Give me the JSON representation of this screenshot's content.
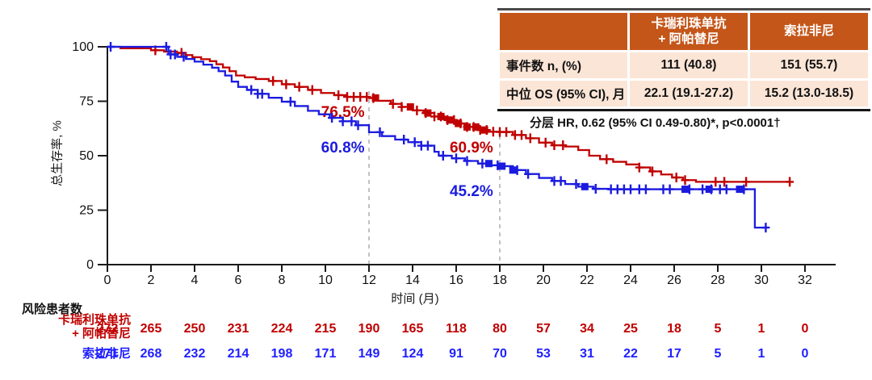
{
  "colors": {
    "red": "#c00000",
    "blue": "#1b1be0",
    "blue_text": "#1f1fff",
    "table_header_bg": "#c4561a",
    "table_body_bg": "#fbe5d6",
    "dashed_line": "#b3b3b3",
    "axis": "#1a1a1a"
  },
  "summary_table": {
    "header": {
      "col2_line1": "卡瑞利珠单抗",
      "col2_line2": "+ 阿帕替尼",
      "col3": "索拉非尼"
    },
    "rows": [
      {
        "label": "事件数 n, (%)",
        "arm1": "111 (40.8)",
        "arm2": "151 (55.7)"
      },
      {
        "label": "中位 OS (95% CI), 月",
        "arm1": "22.1 (19.1-27.2)",
        "arm2": "15.2 (13.0-18.5)"
      }
    ]
  },
  "hr_note": {
    "text": "分层 HR, 0.62 (95% CI 0.49-0.80)*, p<0.0001†"
  },
  "chart_data": {
    "type": "line",
    "subtype": "kaplan-meier-step",
    "ylabel": "总生存率, %",
    "xlabel": "时间 (月)",
    "ylim": [
      0,
      100
    ],
    "xlim": [
      0,
      33
    ],
    "yticks": [
      100,
      75,
      50,
      25,
      0
    ],
    "xticks": [
      0,
      2,
      4,
      6,
      8,
      10,
      12,
      14,
      16,
      18,
      20,
      22,
      24,
      26,
      28,
      30,
      32
    ],
    "dashed_reference_months": [
      12,
      18
    ],
    "series": [
      {
        "name": "卡瑞利珠单抗 + 阿帕替尼",
        "color": "#c00000",
        "steps": [
          [
            0,
            100
          ],
          [
            0.6,
            99.3
          ],
          [
            2,
            98.4
          ],
          [
            2.6,
            97.8
          ],
          [
            3.2,
            97.2
          ],
          [
            3.6,
            96.2
          ],
          [
            3.9,
            95.2
          ],
          [
            4.3,
            94.3
          ],
          [
            4.7,
            93.4
          ],
          [
            5.0,
            92.0
          ],
          [
            5.3,
            90.5
          ],
          [
            5.6,
            88.8
          ],
          [
            5.9,
            86.8
          ],
          [
            6.3,
            86.0
          ],
          [
            6.8,
            85.2
          ],
          [
            7.4,
            84.3
          ],
          [
            8.0,
            82.8
          ],
          [
            8.6,
            81.6
          ],
          [
            9.2,
            80.2
          ],
          [
            9.8,
            78.8
          ],
          [
            10.4,
            77.8
          ],
          [
            11.0,
            77.0
          ],
          [
            12.0,
            76.5
          ],
          [
            12.4,
            75.2
          ],
          [
            13.0,
            73.8
          ],
          [
            13.5,
            72.4
          ],
          [
            14.0,
            70.8
          ],
          [
            14.5,
            69.6
          ],
          [
            15.0,
            68.0
          ],
          [
            15.5,
            66.4
          ],
          [
            16.0,
            64.8
          ],
          [
            16.5,
            63.2
          ],
          [
            17.0,
            61.8
          ],
          [
            17.5,
            61.0
          ],
          [
            18.0,
            60.9
          ],
          [
            18.6,
            59.5
          ],
          [
            19.2,
            58.0
          ],
          [
            19.8,
            56.0
          ],
          [
            20.4,
            54.8
          ],
          [
            21.0,
            54.2
          ],
          [
            21.6,
            52.6
          ],
          [
            22.1,
            50.0
          ],
          [
            22.6,
            48.4
          ],
          [
            23.2,
            47.2
          ],
          [
            23.8,
            46.0
          ],
          [
            24.4,
            44.6
          ],
          [
            24.9,
            42.8
          ],
          [
            25.4,
            41.4
          ],
          [
            25.9,
            40.0
          ],
          [
            26.4,
            38.8
          ],
          [
            27.0,
            38.0
          ],
          [
            31.3,
            38.0
          ]
        ],
        "censor_months": [
          2.2,
          3.4,
          7.6,
          8.2,
          8.8,
          9.4,
          10.6,
          11.0,
          11.3,
          11.6,
          11.9,
          12.2,
          13.1,
          13.5,
          14.2,
          14.6,
          15.0,
          15.3,
          15.6,
          15.9,
          16.2,
          16.5,
          16.8,
          17.1,
          17.4,
          17.7,
          18.0,
          18.3,
          18.7,
          19.0,
          19.4,
          20.1,
          20.5,
          20.9,
          22.9,
          24.4,
          25.0,
          26.1,
          26.5,
          27.9,
          28.3,
          29.3,
          31.3
        ],
        "censor_cluster_months": [
          12.3,
          13.9,
          14.7,
          15.3,
          15.7,
          16.1,
          16.5,
          16.9,
          17.3
        ],
        "annotations": [
          {
            "text": "76.5%",
            "x_month": 10.8,
            "y_pct": 67.8
          },
          {
            "text": "60.9%",
            "x_month": 16.7,
            "y_pct": 51.5
          }
        ]
      },
      {
        "name": "索拉非尼",
        "color": "#1b1be0",
        "steps": [
          [
            0,
            100
          ],
          [
            2.6,
            100
          ],
          [
            2.8,
            96.5
          ],
          [
            3.2,
            95.4
          ],
          [
            3.6,
            94.4
          ],
          [
            4.0,
            93.2
          ],
          [
            4.4,
            91.8
          ],
          [
            4.8,
            90.4
          ],
          [
            5.1,
            88.8
          ],
          [
            5.4,
            86.8
          ],
          [
            5.7,
            84.0
          ],
          [
            6.0,
            81.6
          ],
          [
            6.4,
            80.2
          ],
          [
            6.9,
            78.4
          ],
          [
            7.4,
            76.6
          ],
          [
            8.0,
            74.8
          ],
          [
            8.6,
            72.8
          ],
          [
            9.2,
            70.6
          ],
          [
            9.7,
            69.0
          ],
          [
            10.2,
            67.4
          ],
          [
            10.8,
            65.8
          ],
          [
            11.4,
            64.0
          ],
          [
            12.0,
            60.8
          ],
          [
            12.6,
            59.0
          ],
          [
            13.2,
            57.4
          ],
          [
            13.8,
            56.2
          ],
          [
            14.4,
            54.6
          ],
          [
            15.0,
            51.8
          ],
          [
            15.2,
            50.0
          ],
          [
            15.8,
            48.8
          ],
          [
            16.4,
            47.6
          ],
          [
            17.0,
            46.4
          ],
          [
            17.6,
            45.6
          ],
          [
            18.0,
            45.2
          ],
          [
            18.6,
            43.4
          ],
          [
            19.2,
            41.6
          ],
          [
            19.8,
            39.8
          ],
          [
            20.4,
            38.4
          ],
          [
            21.0,
            37.0
          ],
          [
            21.6,
            35.8
          ],
          [
            22.3,
            34.8
          ],
          [
            23.0,
            34.6
          ],
          [
            29.7,
            34.6
          ],
          [
            29.7,
            17.0
          ],
          [
            30.2,
            17.0
          ]
        ],
        "censor_months": [
          0.15,
          2.7,
          2.9,
          3.1,
          3.5,
          6.6,
          6.9,
          7.1,
          8.4,
          10.3,
          10.8,
          11.2,
          11.5,
          12.5,
          13.6,
          14.1,
          14.4,
          14.7,
          15.4,
          16.0,
          16.5,
          17.2,
          17.9,
          18.8,
          19.3,
          20.5,
          20.8,
          21.5,
          22.4,
          23.1,
          23.4,
          23.7,
          24.0,
          24.4,
          24.7,
          25.5,
          25.8,
          26.7,
          27.3,
          27.7,
          28.1,
          28.4,
          29.2,
          30.2
        ],
        "censor_cluster_months": [
          17.5,
          18.1,
          18.6,
          21.9,
          26.5,
          27.6,
          29.0
        ],
        "annotations": [
          {
            "text": "60.8%",
            "x_month": 10.8,
            "y_pct": 51.5
          },
          {
            "text": "45.2%",
            "x_month": 16.7,
            "y_pct": 31.5
          }
        ]
      }
    ]
  },
  "risk_table": {
    "title": "风险患者数",
    "months": [
      0,
      2,
      4,
      6,
      8,
      10,
      12,
      14,
      16,
      18,
      20,
      22,
      24,
      26,
      28,
      30,
      32
    ],
    "rows": [
      {
        "label_lines": [
          "卡瑞利珠单抗",
          "+ 阿帕替尼"
        ],
        "color": "#c00000",
        "counts": [
          272,
          265,
          250,
          231,
          224,
          215,
          190,
          165,
          118,
          80,
          57,
          34,
          25,
          18,
          5,
          1,
          0
        ]
      },
      {
        "label_lines": [
          "索拉非尼"
        ],
        "color": "#1f1fff",
        "counts": [
          271,
          268,
          232,
          214,
          198,
          171,
          149,
          124,
          91,
          70,
          53,
          31,
          22,
          17,
          5,
          1,
          0
        ]
      }
    ]
  }
}
